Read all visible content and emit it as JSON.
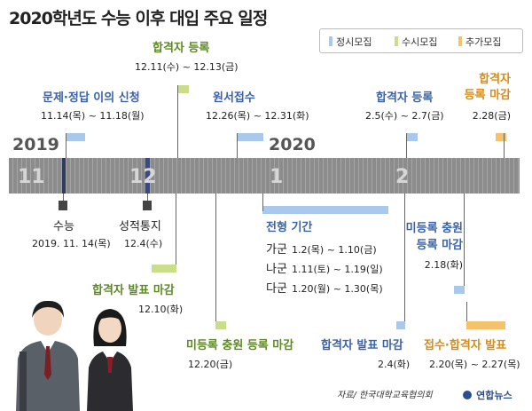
{
  "title": "2020학년도 수능 이후 대입 주요 일정",
  "legend": [
    {
      "label": "정시모집",
      "color": "#a9c8ec"
    },
    {
      "label": "수시모집",
      "color": "#c9dd8a"
    },
    {
      "label": "추가모집",
      "color": "#f3c26a"
    }
  ],
  "timeline": {
    "years": [
      "2019",
      "2020"
    ],
    "months": [
      "11",
      "12",
      "1",
      "2"
    ]
  },
  "events_above": [
    {
      "label": "문제·정답 이의 신청",
      "date": "11.14(목) ~ 11.18(월)",
      "type": "정시모집"
    },
    {
      "label": "합격자 등록",
      "date": "12.11(수) ~ 12.13(금)",
      "type": "수시모집"
    },
    {
      "label": "원서접수",
      "date": "12.26(목) ~ 12.31(화)",
      "type": "정시모집"
    },
    {
      "label": "합격자 등록",
      "date": "2.5(수) ~ 2.7(금)",
      "type": "정시모집"
    },
    {
      "label": "합격자 등록 마감",
      "label_line1": "합격자",
      "label_line2": "등록 마감",
      "date": "2.28(금)",
      "type": "추가모집"
    }
  ],
  "markers": [
    {
      "label": "수능",
      "date": "2019. 11. 14(목)"
    },
    {
      "label": "성적통지",
      "date": "12.4(수)"
    }
  ],
  "selection": {
    "label": "전형 기간",
    "rows": [
      {
        "group": "가군",
        "date": "1.2(목) ~ 1.10(금)"
      },
      {
        "group": "나군",
        "date": "1.11(토) ~ 1.19(일)"
      },
      {
        "group": "다군",
        "date": "1.20(월) ~ 1.30(목)"
      }
    ]
  },
  "events_below": [
    {
      "label": "합격자 발표 마감",
      "date": "12.10(화)",
      "type": "수시모집"
    },
    {
      "label": "미등록 충원 등록 마감",
      "date": "12.20(금)",
      "type": "수시모집"
    },
    {
      "label": "미등록 충원 등록 마감",
      "label_line1": "미등록 충원",
      "label_line2": "등록 마감",
      "date": "2.18(화)",
      "type": "정시모집"
    },
    {
      "label": "합격자 발표 마감",
      "date": "2.4(화)",
      "type": "정시모집"
    },
    {
      "label": "접수·합격자 발표",
      "date": "2.20(목) ~ 2.27(목)",
      "type": "추가모집"
    }
  ],
  "source": "자료/ 한국대학교육협의회",
  "logo": "연합뉴스"
}
